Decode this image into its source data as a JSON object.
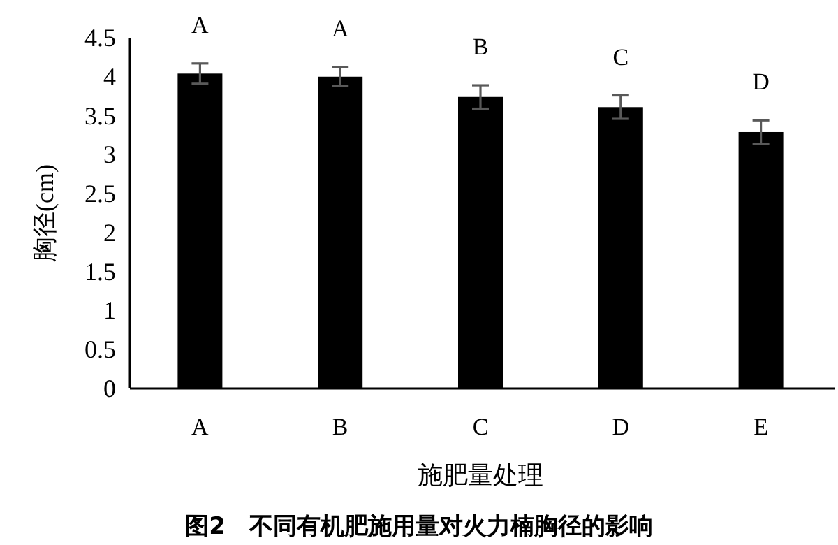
{
  "chart_data": {
    "type": "bar",
    "title": "图2　不同有机肥施用量对火力楠胸径的影响",
    "xlabel": "施肥量处理",
    "ylabel": "胸径(cm)",
    "categories": [
      "A",
      "B",
      "C",
      "D",
      "E"
    ],
    "values": [
      4.04,
      4.0,
      3.74,
      3.61,
      3.29
    ],
    "errors": [
      0.13,
      0.12,
      0.15,
      0.15,
      0.15
    ],
    "color": "#000000",
    "ylim": [
      0,
      4.5
    ],
    "yticks": [
      0,
      0.5,
      1,
      1.5,
      2,
      2.5,
      3,
      3.5,
      4,
      4.5
    ],
    "grid": false,
    "annotations": [
      {
        "text": "A",
        "x": "A",
        "y": 4.04
      },
      {
        "text": "A",
        "x": "B",
        "y": 4.0
      },
      {
        "text": "B",
        "x": "C",
        "y": 3.74
      },
      {
        "text": "C",
        "x": "D",
        "y": 3.61
      },
      {
        "text": "D",
        "x": "E",
        "y": 3.29
      }
    ]
  }
}
